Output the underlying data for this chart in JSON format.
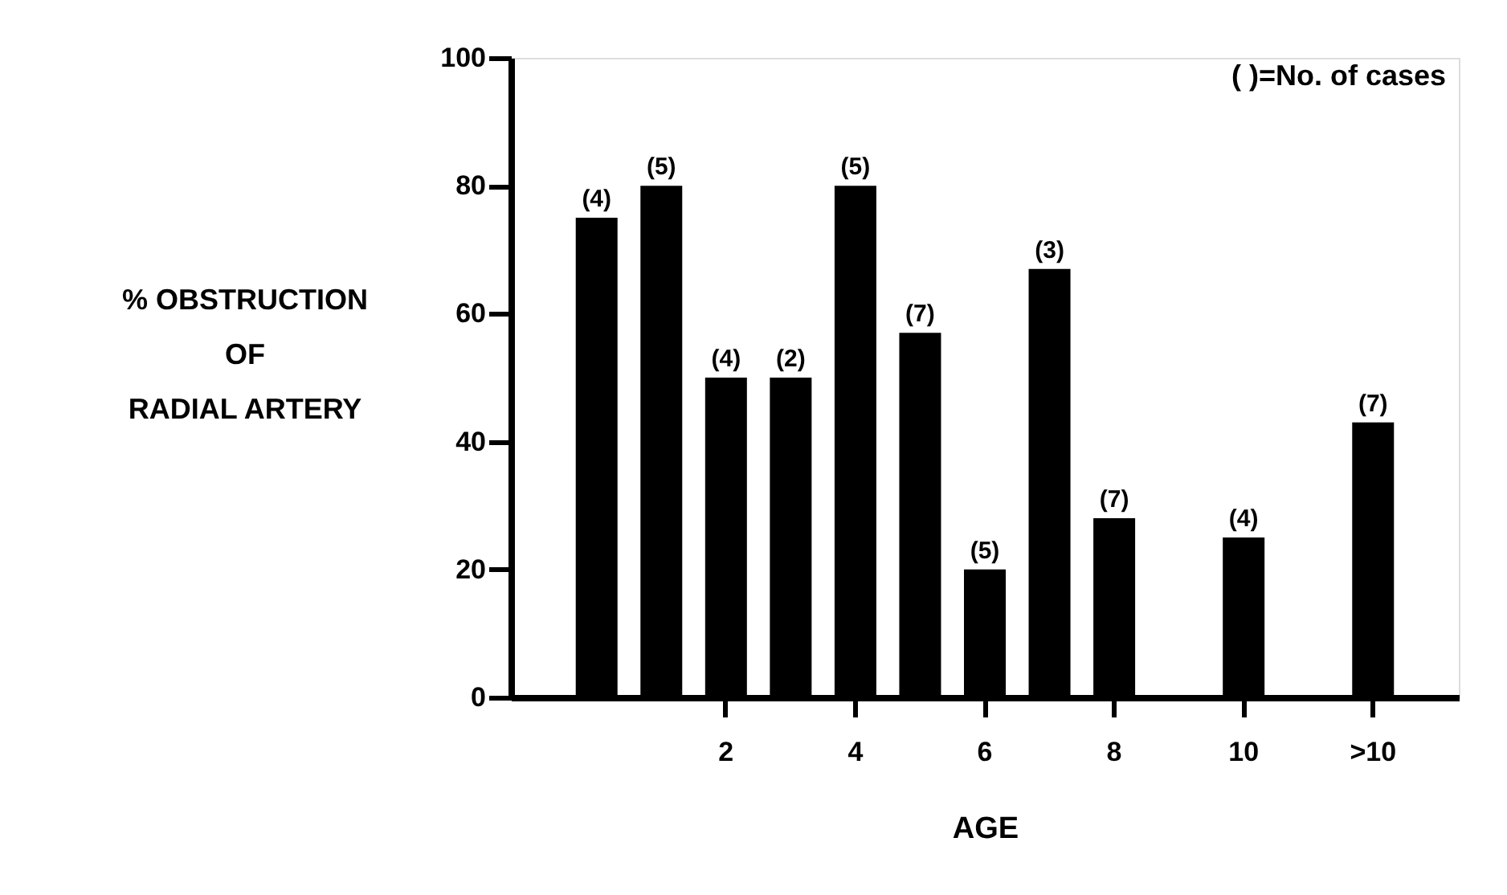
{
  "chart_data": {
    "type": "bar",
    "xlabel": "AGE",
    "ylabel": "% OBSTRUCTION OF RADIAL ARTERY",
    "categories": [
      null,
      null,
      "2",
      null,
      "4",
      null,
      "6",
      null,
      "8",
      null,
      "10",
      null,
      ">10"
    ],
    "values": [
      75,
      80,
      50,
      50,
      80,
      57,
      20,
      67,
      28,
      null,
      25,
      null,
      43
    ],
    "color": "#000000",
    "ylim": [
      0,
      100
    ],
    "yticks": [
      0,
      20,
      40,
      60,
      80,
      100
    ],
    "grid": false,
    "annotations": [
      "( )=No. of cases",
      {
        "text": "(4)",
        "y": 75
      },
      {
        "text": "(5)",
        "y": 80
      },
      {
        "text": "(4)",
        "x": "2",
        "y": 50
      },
      {
        "text": "(2)",
        "y": 50
      },
      {
        "text": "(5)",
        "x": "4",
        "y": 80
      },
      {
        "text": "(7)",
        "y": 57
      },
      {
        "text": "(5)",
        "x": "6",
        "y": 20
      },
      {
        "text": "(3)",
        "y": 67
      },
      {
        "text": "(7)",
        "x": "8",
        "y": 28
      },
      {
        "text": "(4)",
        "x": "10",
        "y": 25
      },
      {
        "text": "(7)",
        "x": ">10",
        "y": 43
      }
    ]
  }
}
